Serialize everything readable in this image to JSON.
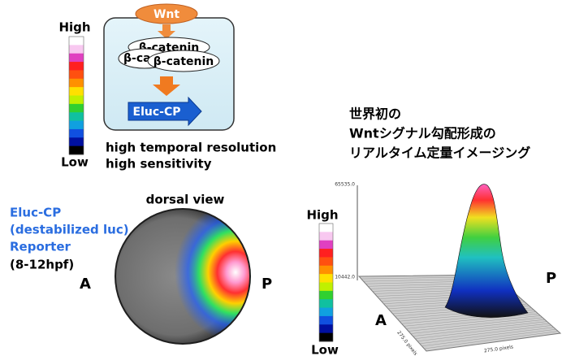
{
  "colorbar_left": {
    "high": "High",
    "low": "Low"
  },
  "pathway": {
    "ligand": "Wnt",
    "catenin_1": "β-catenin",
    "catenin_2": "β-ca",
    "catenin_3": "β-catenin",
    "reporter": "Eluc-CP"
  },
  "features": [
    "high temporal resolution",
    "high sensitivity"
  ],
  "headline": [
    "世界初の",
    "Wntシグナル勾配形成の",
    "リアルタイム定量イメージング"
  ],
  "reporter_label": [
    "Eluc-CP",
    "(destabilized luc)",
    "Reporter",
    "(8-12hpf)"
  ],
  "embryo": {
    "view": "dorsal view",
    "anterior": "A",
    "posterior": "P"
  },
  "colorbar_right": {
    "high": "High",
    "low": "Low"
  },
  "surface_plot": {
    "z_max": "65535.0",
    "z_min": "10442.0",
    "anterior": "A",
    "x_axis": "275.0 pixels",
    "y_axis": "275.0 pixels",
    "posterior": "P"
  }
}
